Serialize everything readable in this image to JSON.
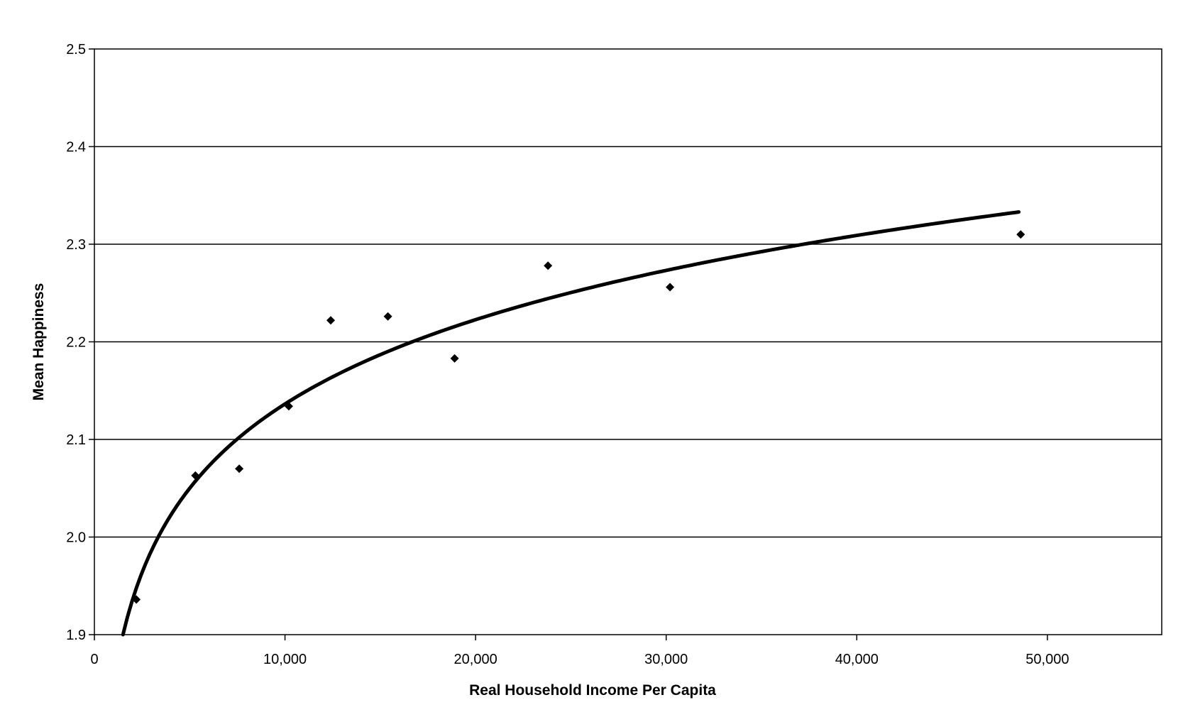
{
  "chart_data": {
    "type": "scatter",
    "title": "",
    "xlabel": "Real Household Income Per Capita",
    "ylabel": "Mean Happiness",
    "xlim": [
      0,
      56000
    ],
    "ylim": [
      1.9,
      2.5
    ],
    "x_ticks": [
      0,
      10000,
      20000,
      30000,
      40000,
      50000
    ],
    "x_tick_labels": [
      "0",
      "10,000",
      "20,000",
      "30,000",
      "40,000",
      "50,000"
    ],
    "y_ticks": [
      1.9,
      2.0,
      2.1,
      2.2,
      2.3,
      2.4,
      2.5
    ],
    "y_tick_labels": [
      "1.9",
      "2.0",
      "2.1",
      "2.2",
      "2.3",
      "2.4",
      "2.5"
    ],
    "grid": "horizontal",
    "legend": "none",
    "marker": "diamond",
    "points": [
      {
        "x": 2200,
        "y": 1.936
      },
      {
        "x": 5300,
        "y": 2.063
      },
      {
        "x": 7600,
        "y": 2.07
      },
      {
        "x": 10200,
        "y": 2.134
      },
      {
        "x": 12400,
        "y": 2.222
      },
      {
        "x": 15400,
        "y": 2.226
      },
      {
        "x": 18900,
        "y": 2.183
      },
      {
        "x": 23800,
        "y": 2.278
      },
      {
        "x": 30200,
        "y": 2.256
      },
      {
        "x": 48600,
        "y": 2.31
      }
    ],
    "trendline": {
      "type": "logarithmic",
      "x_range": [
        1500,
        48500
      ],
      "points": [
        {
          "x": 1500,
          "y": 1.9
        },
        {
          "x": 48500,
          "y": 2.333
        }
      ]
    }
  }
}
